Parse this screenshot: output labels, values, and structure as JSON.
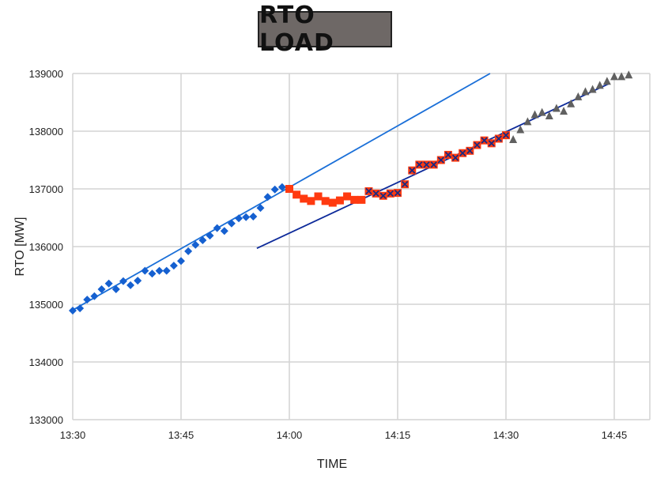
{
  "chart_data": {
    "type": "scatter",
    "title": "RTO LOAD",
    "xlabel": "TIME",
    "ylabel": "RTO [MW]",
    "xlim": [
      "13:30",
      "14:50"
    ],
    "ylim": [
      133000,
      139000
    ],
    "xticks": [
      "13:30",
      "13:45",
      "14:00",
      "14:15",
      "14:30",
      "14:45"
    ],
    "yticks": [
      133000,
      134000,
      135000,
      136000,
      137000,
      138000,
      139000
    ],
    "grid": true,
    "legend": "none",
    "series": [
      {
        "marker": "diamond",
        "color": "#1560d0",
        "x": [
          "13:30",
          "13:31",
          "13:32",
          "13:33",
          "13:34",
          "13:35",
          "13:36",
          "13:37",
          "13:38",
          "13:39",
          "13:40",
          "13:41",
          "13:42",
          "13:43",
          "13:44",
          "13:45",
          "13:46",
          "13:47",
          "13:48",
          "13:49",
          "13:50",
          "13:51",
          "13:52",
          "13:53",
          "13:54",
          "13:55",
          "13:56",
          "13:57",
          "13:58",
          "13:59"
        ],
        "y": [
          134890,
          134930,
          135080,
          135140,
          135260,
          135360,
          135260,
          135400,
          135330,
          135410,
          135580,
          135530,
          135580,
          135580,
          135670,
          135750,
          135920,
          136030,
          136110,
          136190,
          136320,
          136270,
          136400,
          136490,
          136510,
          136520,
          136670,
          136860,
          136990,
          137030
        ]
      },
      {
        "marker": "square",
        "color": "#ff3a10",
        "x": [
          "14:00",
          "14:01",
          "14:02",
          "14:03",
          "14:04",
          "14:05",
          "14:06",
          "14:07",
          "14:08",
          "14:09",
          "14:10"
        ],
        "y": [
          137000,
          136900,
          136830,
          136790,
          136870,
          136790,
          136760,
          136800,
          136870,
          136810,
          136810
        ]
      },
      {
        "marker": "square-x",
        "color": "#ff3a10",
        "xcolor": "#1a2a80",
        "x": [
          "14:11",
          "14:12",
          "14:13",
          "14:14",
          "14:15",
          "14:16",
          "14:17",
          "14:18",
          "14:19",
          "14:20",
          "14:21",
          "14:22",
          "14:23",
          "14:24",
          "14:25",
          "14:26",
          "14:27",
          "14:28",
          "14:29",
          "14:30"
        ],
        "y": [
          136960,
          136920,
          136880,
          136920,
          136930,
          137080,
          137320,
          137420,
          137420,
          137420,
          137500,
          137590,
          137540,
          137620,
          137660,
          137760,
          137840,
          137790,
          137870,
          137930
        ]
      },
      {
        "marker": "triangle",
        "color": "#606060",
        "x": [
          "14:31",
          "14:32",
          "14:33",
          "14:34",
          "14:35",
          "14:36",
          "14:37",
          "14:38",
          "14:39",
          "14:40",
          "14:41",
          "14:42",
          "14:43",
          "14:44",
          "14:45",
          "14:46",
          "14:47"
        ],
        "y": [
          137850,
          138020,
          138160,
          138280,
          138320,
          138260,
          138390,
          138340,
          138470,
          138590,
          138680,
          138720,
          138790,
          138860,
          138940,
          138940,
          138970
        ]
      }
    ],
    "trendlines": [
      {
        "color": "#1a6fd8",
        "x": [
          "13:30",
          "14:27.8"
        ],
        "y": [
          134900,
          139000
        ]
      },
      {
        "color": "#0d2a9a",
        "x": [
          "13:55.5",
          "14:44.2"
        ],
        "y": [
          135970,
          138820
        ]
      }
    ]
  }
}
